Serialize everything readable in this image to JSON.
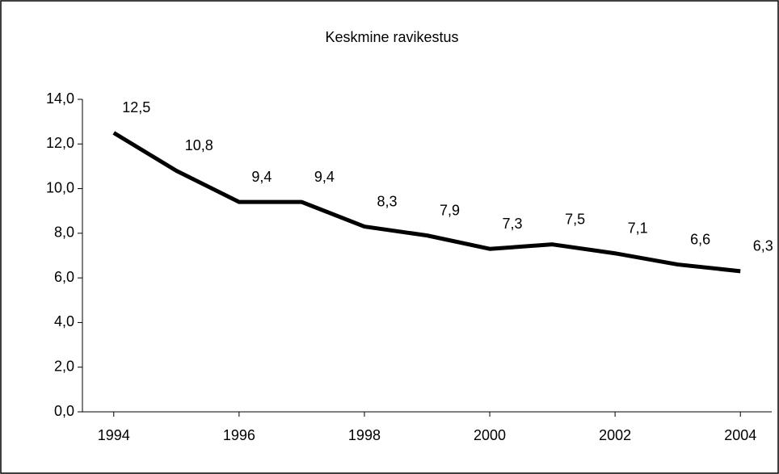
{
  "chart_data": {
    "type": "line",
    "title": "Keskmine ravikestus",
    "x": [
      1994,
      1995,
      1996,
      1997,
      1998,
      1999,
      2000,
      2001,
      2002,
      2003,
      2004
    ],
    "series": [
      {
        "name": null,
        "color": "#000000",
        "values": [
          12.5,
          10.8,
          9.4,
          9.4,
          8.3,
          7.9,
          7.3,
          7.5,
          7.1,
          6.6,
          6.3
        ],
        "value_labels": [
          "12,5",
          "10,8",
          "9,4",
          "9,4",
          "8,3",
          "7,9",
          "7,3",
          "7,5",
          "7,1",
          "6,6",
          "6,3"
        ]
      }
    ],
    "xlim": [
      1993.5,
      2004.5
    ],
    "xticks": [
      1994,
      1996,
      1998,
      2000,
      2002,
      2004
    ],
    "ylim": [
      0,
      14
    ],
    "yticks": [
      {
        "value": 0,
        "label": "0,0"
      },
      {
        "value": 2,
        "label": "2,0"
      },
      {
        "value": 4,
        "label": "4,0"
      },
      {
        "value": 6,
        "label": "6,0"
      },
      {
        "value": 8,
        "label": "8,0"
      },
      {
        "value": 10,
        "label": "10,0"
      },
      {
        "value": 12,
        "label": "12,0"
      },
      {
        "value": 14,
        "label": "14,0"
      }
    ],
    "grid": false
  }
}
